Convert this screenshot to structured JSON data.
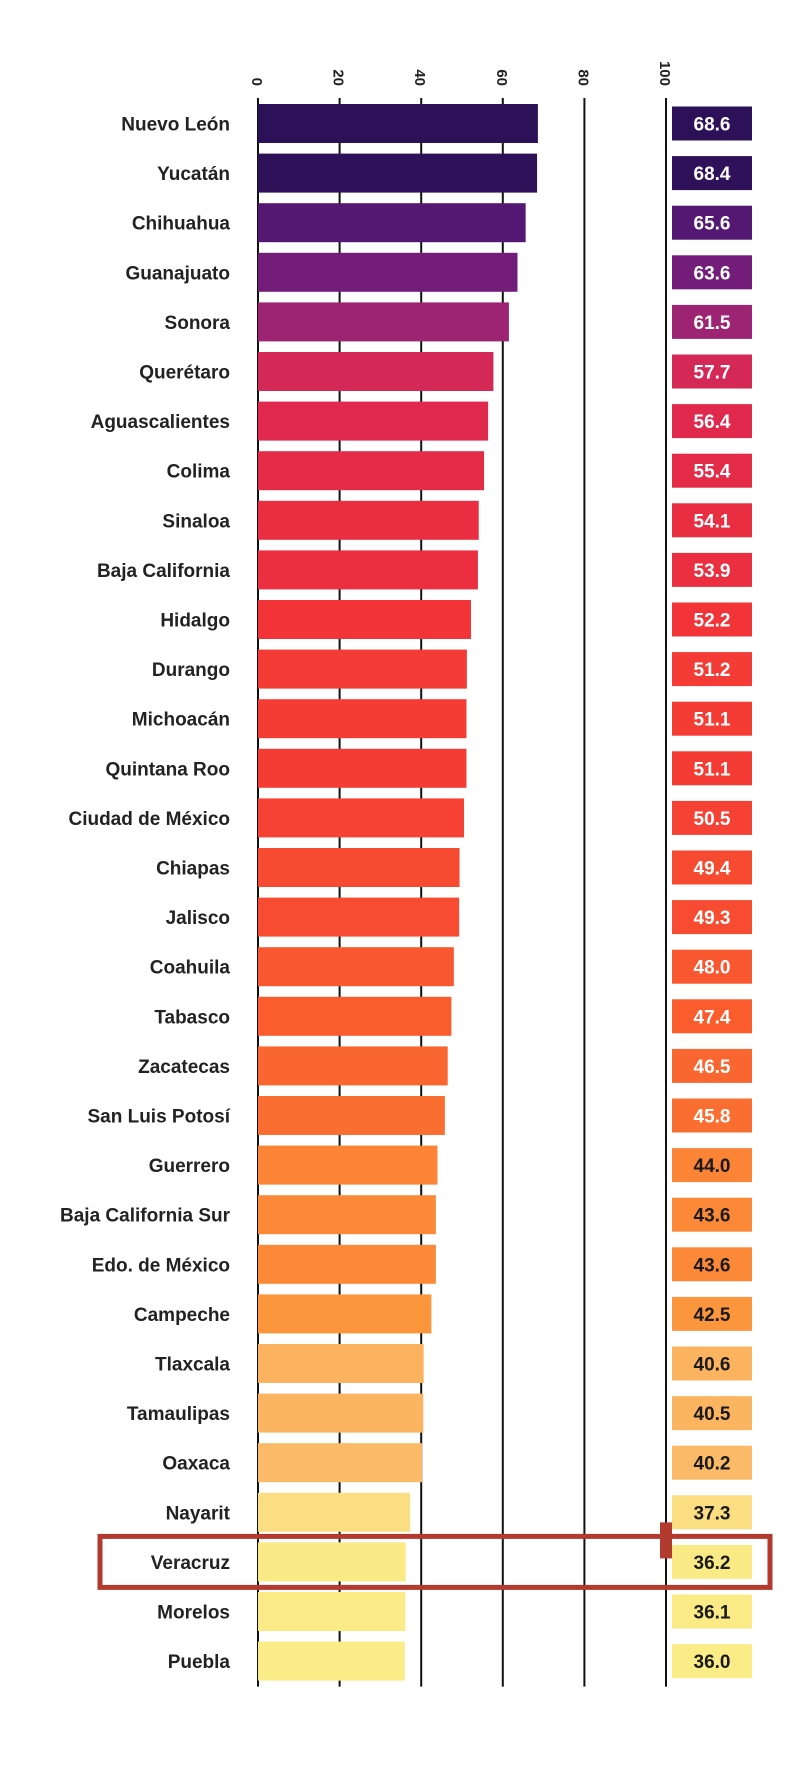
{
  "chart_data": {
    "type": "bar",
    "orientation": "horizontal",
    "categories": [
      "Nuevo León",
      "Yucatán",
      "Chihuahua",
      "Guanajuato",
      "Sonora",
      "Querétaro",
      "Aguascalientes",
      "Colima",
      "Sinaloa",
      "Baja California",
      "Hidalgo",
      "Durango",
      "Michoacán",
      "Quintana Roo",
      "Ciudad de México",
      "Chiapas",
      "Jalisco",
      "Coahuila",
      "Tabasco",
      "Zacatecas",
      "San Luis Potosí",
      "Guerrero",
      "Baja California Sur",
      "Edo. de México",
      "Campeche",
      "Tlaxcala",
      "Tamaulipas",
      "Oaxaca",
      "Nayarit",
      "Veracruz",
      "Morelos",
      "Puebla"
    ],
    "values": [
      68.6,
      68.4,
      65.6,
      63.6,
      61.5,
      57.7,
      56.4,
      55.4,
      54.1,
      53.9,
      52.2,
      51.2,
      51.1,
      51.1,
      50.5,
      49.4,
      49.3,
      48.0,
      47.4,
      46.5,
      45.8,
      44.0,
      43.6,
      43.6,
      42.5,
      40.6,
      40.5,
      40.2,
      37.3,
      36.2,
      36.1,
      36.0
    ],
    "value_labels": [
      "68.6",
      "68.4",
      "65.6",
      "63.6",
      "61.5",
      "57.7",
      "56.4",
      "55.4",
      "54.1",
      "53.9",
      "52.2",
      "51.2",
      "51.1",
      "51.1",
      "50.5",
      "49.4",
      "49.3",
      "48.0",
      "47.4",
      "46.5",
      "45.8",
      "44.0",
      "43.6",
      "43.6",
      "42.5",
      "40.6",
      "40.5",
      "40.2",
      "37.3",
      "36.2",
      "36.1",
      "36.0"
    ],
    "xlim": [
      0,
      100
    ],
    "ticks": [
      0,
      20,
      40,
      60,
      80,
      100
    ],
    "tick_labels": [
      "0",
      "20",
      "40",
      "60",
      "80",
      "100"
    ],
    "tick_label_rotation": "vertical",
    "axis_position": "top",
    "grid": true,
    "highlighted_category": "Veracruz",
    "highlight_color": "#b23a2e",
    "color_scale": "dark-purple-to-pale-yellow",
    "title": "",
    "xlabel": "",
    "ylabel": ""
  }
}
